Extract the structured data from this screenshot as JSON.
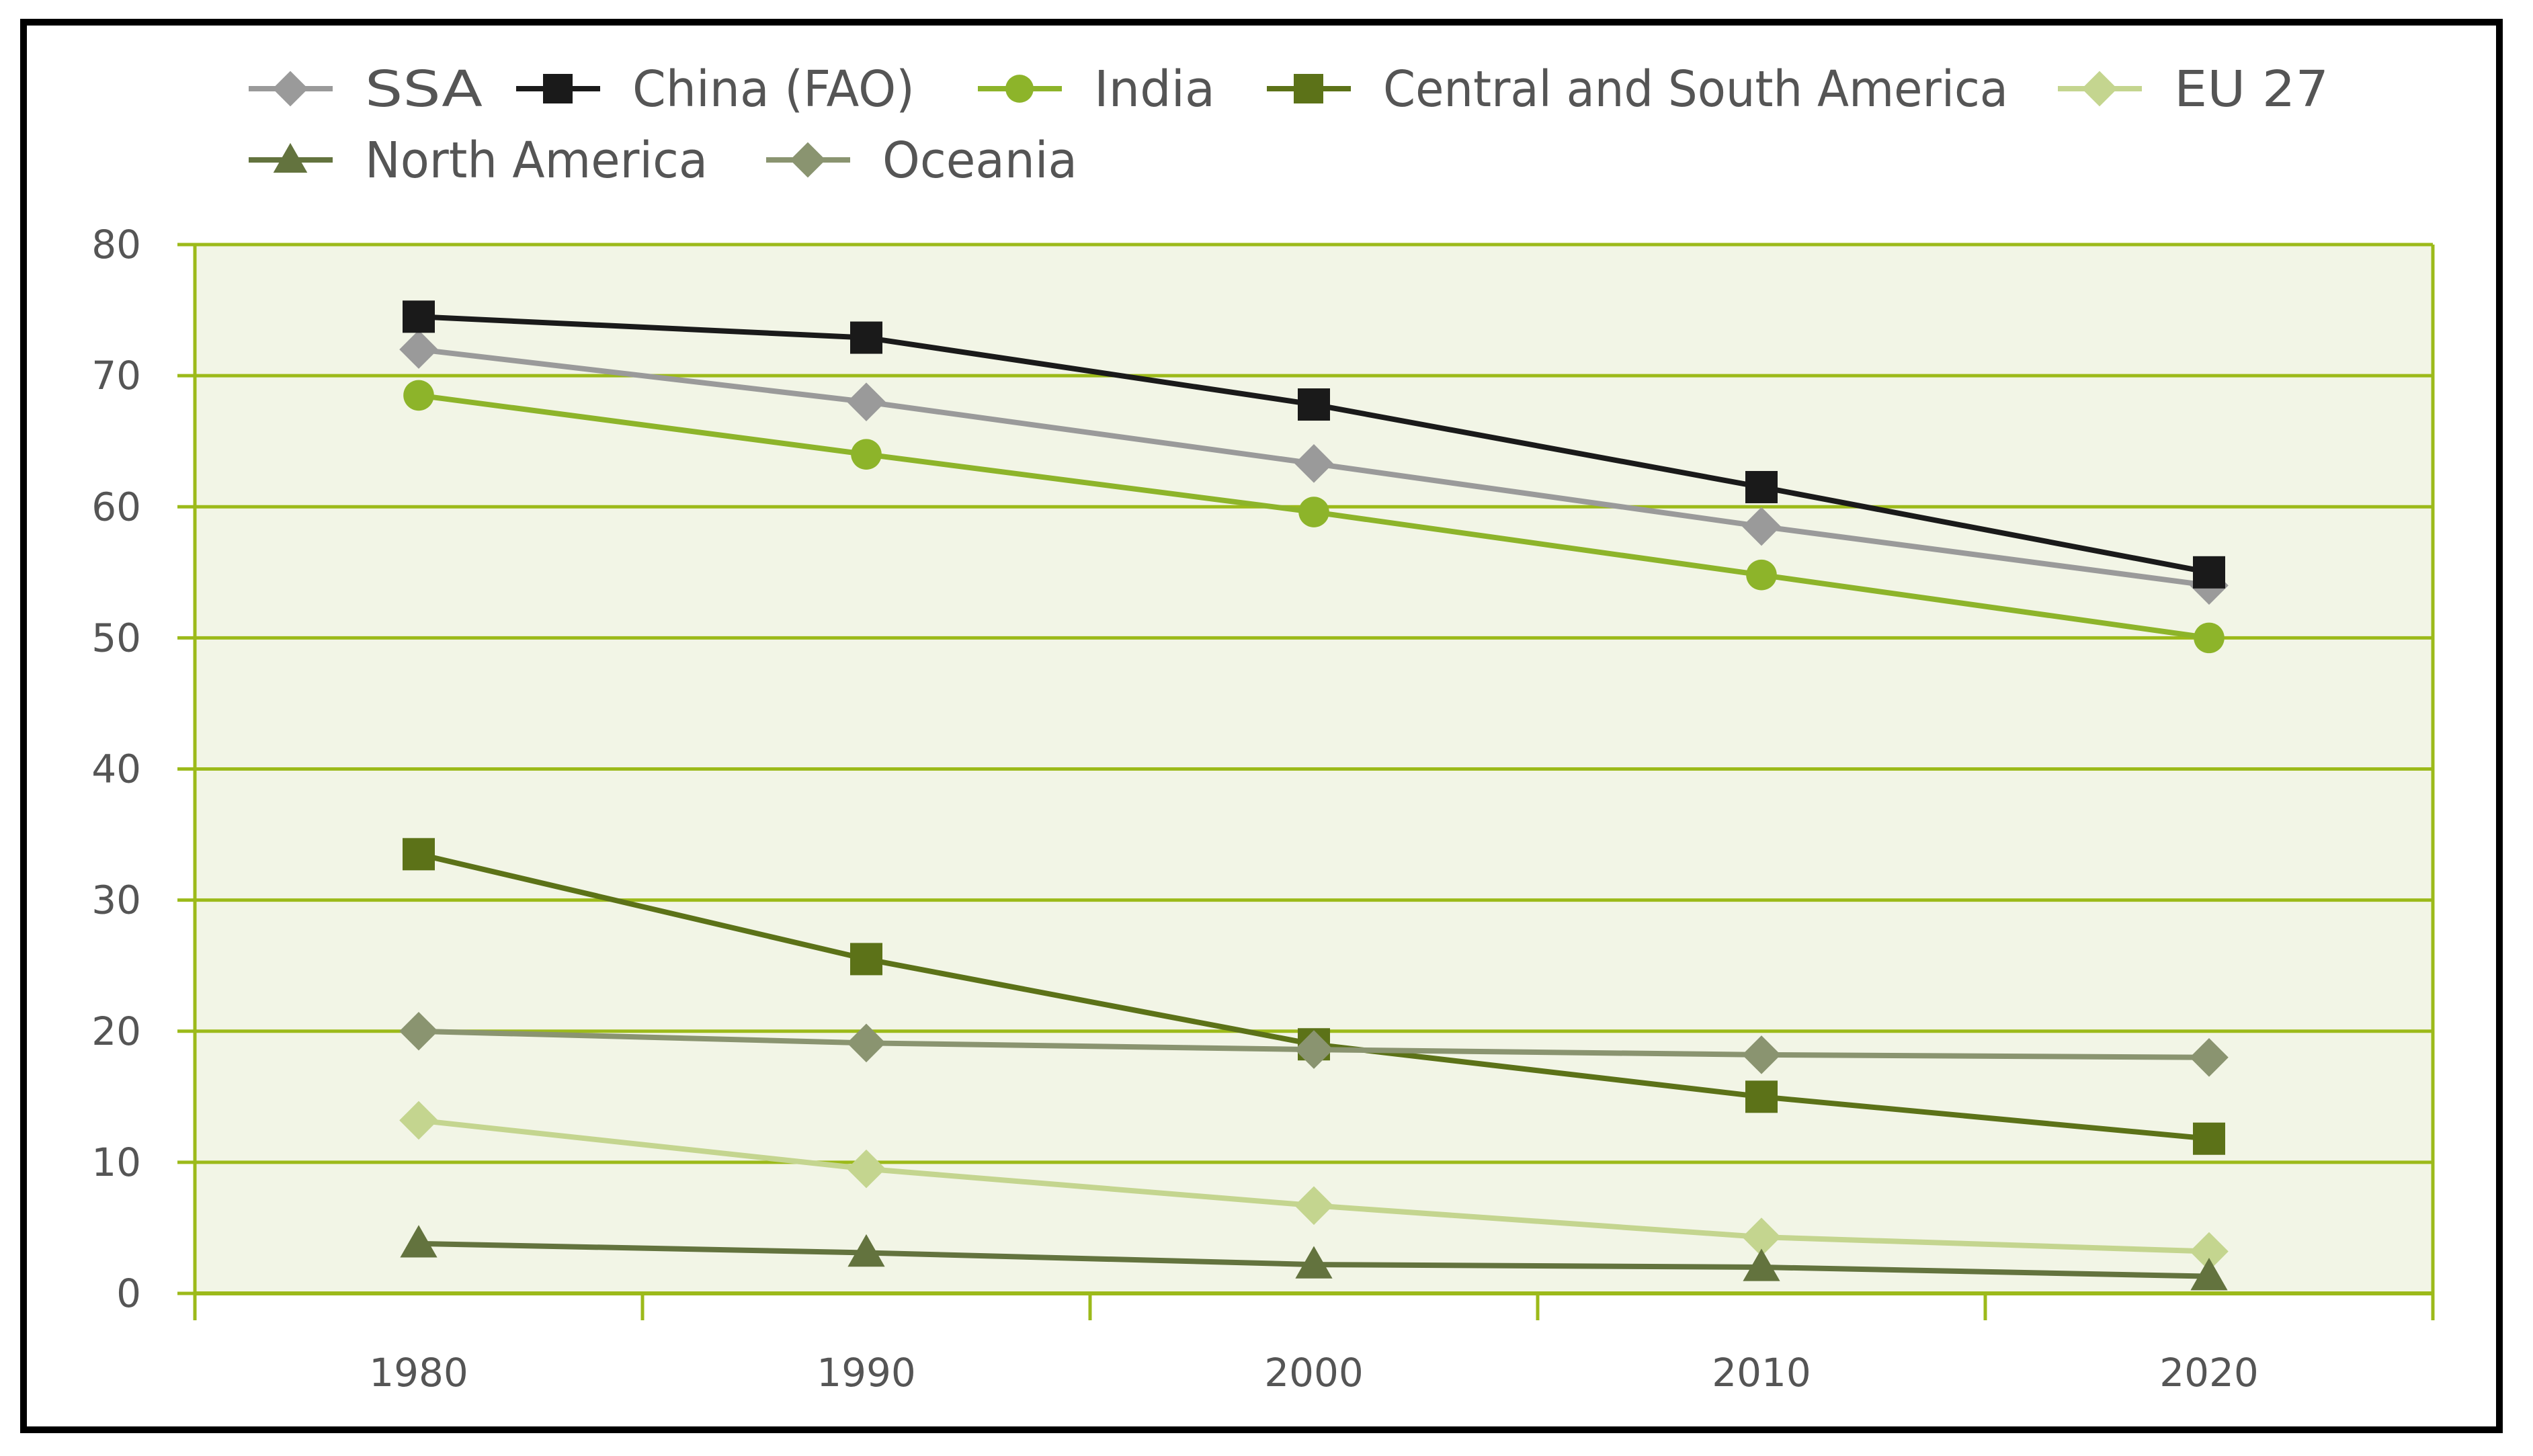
{
  "chart_data": {
    "type": "line",
    "title": "",
    "xlabel": "",
    "ylabel": "",
    "x": [
      1980,
      1990,
      2000,
      2010,
      2020
    ],
    "x_tick_labels": [
      "1980",
      "1990",
      "2000",
      "2010",
      "2020"
    ],
    "y_tick_labels": [
      "0",
      "10",
      "20",
      "30",
      "40",
      "50",
      "60",
      "70",
      "80"
    ],
    "ylim": [
      0,
      80
    ],
    "grid": true,
    "legend_position": "top",
    "series": [
      {
        "name": "SSA",
        "color": "#9a9a9a",
        "marker": "diamond",
        "values": [
          72,
          68,
          63.3,
          58.5,
          54
        ]
      },
      {
        "name": "China (FAO)",
        "color": "#1a1a1a",
        "marker": "square",
        "values": [
          74.5,
          72.9,
          67.8,
          61.5,
          55
        ]
      },
      {
        "name": "India",
        "color": "#8db42a",
        "marker": "circle",
        "values": [
          68.5,
          64,
          59.6,
          54.8,
          50
        ]
      },
      {
        "name": "Central and South America",
        "color": "#5c7218",
        "marker": "square",
        "values": [
          33.5,
          25.5,
          19,
          15,
          11.8
        ]
      },
      {
        "name": "EU 27",
        "color": "#c4d58f",
        "marker": "diamond",
        "values": [
          13.2,
          9.5,
          6.7,
          4.3,
          3.2
        ]
      },
      {
        "name": "North America",
        "color": "#63733e",
        "marker": "triangle",
        "values": [
          3.8,
          3.1,
          2.2,
          2,
          1.3
        ]
      },
      {
        "name": "Oceania",
        "color": "#8a9470",
        "marker": "diamond",
        "values": [
          20,
          19.1,
          18.6,
          18.2,
          18
        ]
      }
    ]
  }
}
